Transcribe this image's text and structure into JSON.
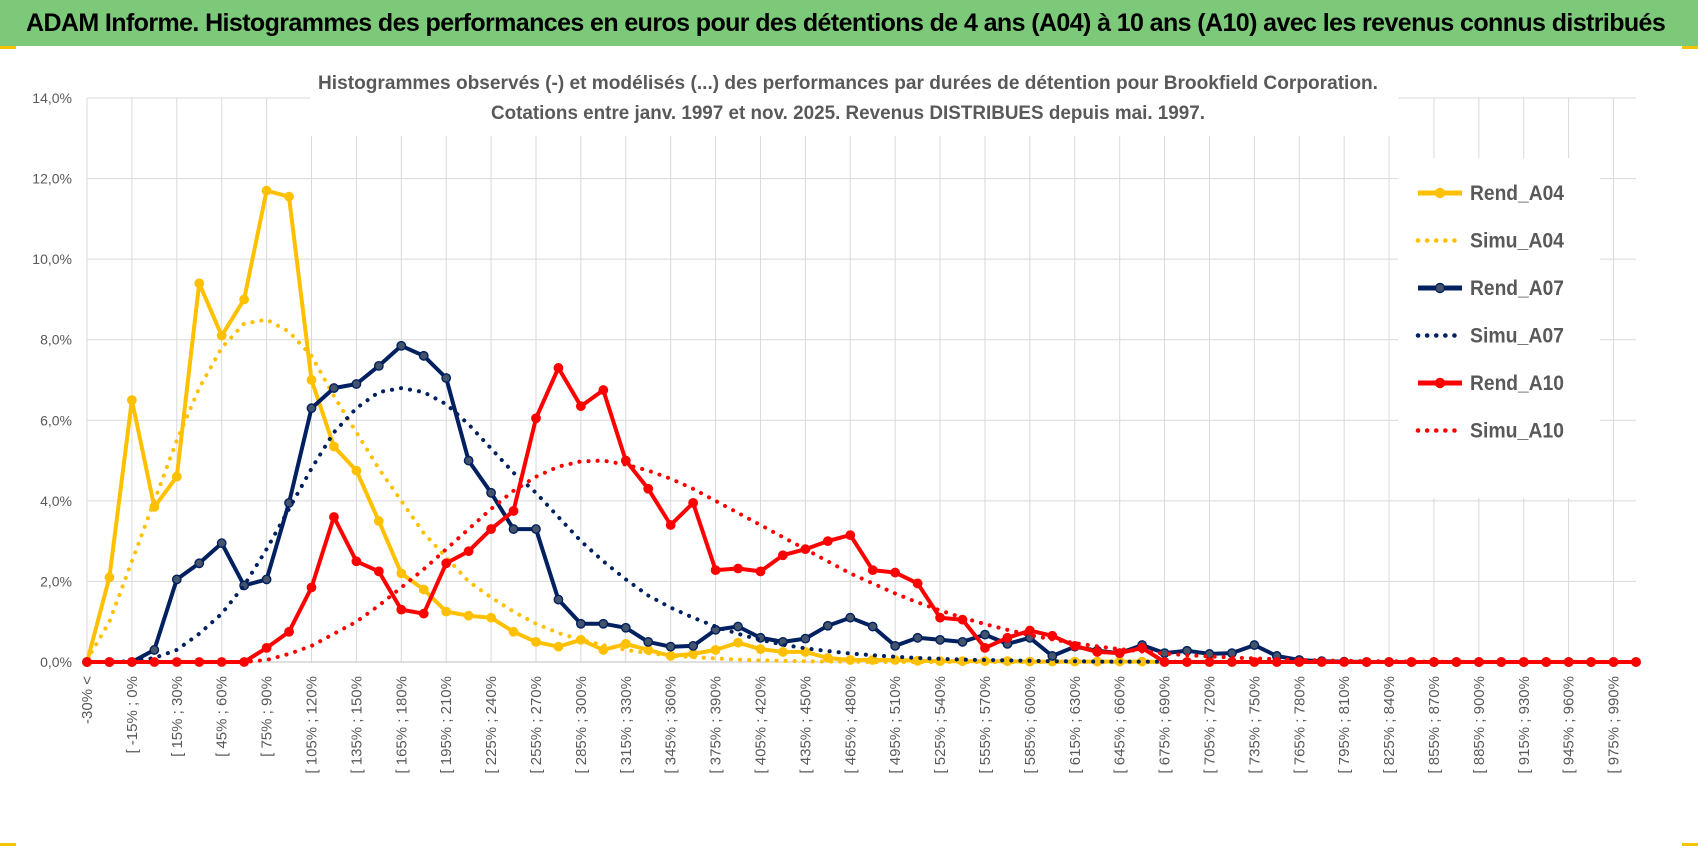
{
  "page_title": "ADAM Informe. Histogrammes des performances en euros pour des détentions de 4 ans (A04) à 10 ans (A10) avec les revenus connus distribués",
  "colors": {
    "header_bg": "#7dc97a",
    "a04": "#ffc000",
    "a07": "#002060",
    "a10": "#ff0000",
    "grid": "#d9d9d9",
    "corner": "#f5c400"
  },
  "chart_data": {
    "type": "line",
    "title_line1": "Histogrammes observés (-)  et modélisés (...) des performances par durées de détention pour Brookfield Corporation.",
    "title_line2": "Cotations entre janv. 1997 et nov. 2025. Revenus DISTRIBUES depuis mai. 1997.",
    "xlabel": "",
    "ylabel": "",
    "ylim": [
      0,
      14
    ],
    "yticks": [
      "0,0%",
      "2,0%",
      "4,0%",
      "6,0%",
      "8,0%",
      "10,0%",
      "12,0%",
      "14,0%"
    ],
    "x_labels_shown": [
      "-30% <",
      "[ -15% ; 0%",
      "[ 15% ; 30%",
      "[ 45% ; 60%",
      "[ 75% ; 90%",
      "[ 105% ; 120%",
      "[ 135% ; 150%",
      "[ 165% ; 180%",
      "[ 195% ; 210%",
      "[ 225% ; 240%",
      "[ 255% ; 270%",
      "[ 285% ; 300%",
      "[ 315% ; 330%",
      "[ 345% ; 360%",
      "[ 375% ; 390%",
      "[ 405% ; 420%",
      "[ 435% ; 450%",
      "[ 465% ; 480%",
      "[ 495% ; 510%",
      "[ 525% ; 540%",
      "[ 555% ; 570%",
      "[ 585% ; 600%",
      "[ 615% ; 630%",
      "[ 645% ; 660%",
      "[ 675% ; 690%",
      "[ 705% ; 720%",
      "[ 735% ; 750%",
      "[ 765% ; 780%",
      "[ 795% ; 810%",
      "[ 825% ; 840%",
      "[ 855% ; 870%",
      "[ 885% ; 900%",
      "[ 915% ; 930%",
      "[ 945% ; 960%",
      "[ 975% ; 990%"
    ],
    "n_points": 70,
    "legend_position": "right",
    "series": [
      {
        "name": "Rend_A04",
        "style": "solid",
        "color": "#ffc000",
        "values": [
          0,
          2.1,
          6.5,
          3.85,
          4.6,
          9.4,
          8.1,
          9.0,
          11.7,
          11.55,
          7.0,
          5.35,
          4.75,
          3.5,
          2.2,
          1.8,
          1.25,
          1.15,
          1.1,
          0.75,
          0.5,
          0.38,
          0.55,
          0.3,
          0.45,
          0.3,
          0.15,
          0.2,
          0.3,
          0.48,
          0.32,
          0.25,
          0.25,
          0.1,
          0.05,
          0.05,
          0.05,
          0.03,
          0.02,
          0.02,
          0.02,
          0.02,
          0.01,
          0.01,
          0.01,
          0.01,
          0.01,
          0.01,
          0.0,
          0,
          0,
          0,
          0,
          0,
          0,
          0,
          0,
          0,
          0,
          0,
          0,
          0,
          0,
          0,
          0,
          0,
          0,
          0,
          0,
          0
        ]
      },
      {
        "name": "Simu_A04",
        "style": "dotted",
        "color": "#ffc000",
        "values": [
          0.05,
          1.0,
          2.5,
          4.0,
          5.5,
          6.8,
          7.8,
          8.4,
          8.5,
          8.2,
          7.6,
          6.6,
          5.7,
          4.8,
          4.0,
          3.2,
          2.6,
          2.0,
          1.6,
          1.25,
          0.95,
          0.72,
          0.55,
          0.42,
          0.3,
          0.22,
          0.16,
          0.12,
          0.09,
          0.06,
          0.04,
          0.03,
          0.02,
          0.01,
          0.01,
          0,
          0,
          0,
          0,
          0,
          0,
          0,
          0,
          0,
          0,
          0,
          0,
          0,
          0,
          0,
          0,
          0,
          0,
          0,
          0,
          0,
          0,
          0,
          0,
          0,
          0,
          0,
          0,
          0,
          0,
          0,
          0,
          0,
          0,
          0
        ]
      },
      {
        "name": "Rend_A07",
        "style": "solid",
        "color": "#002060",
        "values": [
          0,
          0,
          0,
          0.3,
          2.05,
          2.45,
          2.95,
          1.9,
          2.05,
          3.95,
          6.3,
          6.8,
          6.9,
          7.35,
          7.85,
          7.6,
          7.05,
          5.0,
          4.2,
          3.3,
          3.3,
          1.55,
          0.95,
          0.95,
          0.85,
          0.5,
          0.38,
          0.4,
          0.8,
          0.88,
          0.6,
          0.5,
          0.58,
          0.9,
          1.1,
          0.88,
          0.4,
          0.6,
          0.55,
          0.5,
          0.68,
          0.45,
          0.6,
          0.15,
          0.38,
          0.28,
          0.22,
          0.42,
          0.22,
          0.28,
          0.2,
          0.22,
          0.42,
          0.15,
          0.05,
          0.02,
          0.01,
          0,
          0,
          0,
          0,
          0,
          0,
          0,
          0,
          0,
          0,
          0,
          0,
          0
        ]
      },
      {
        "name": "Simu_A07",
        "style": "dotted",
        "color": "#002060",
        "values": [
          0,
          0,
          0.02,
          0.1,
          0.3,
          0.7,
          1.2,
          1.9,
          2.8,
          3.8,
          4.8,
          5.7,
          6.3,
          6.7,
          6.8,
          6.7,
          6.4,
          5.9,
          5.3,
          4.7,
          4.2,
          3.6,
          3.0,
          2.5,
          2.05,
          1.65,
          1.35,
          1.1,
          0.88,
          0.7,
          0.55,
          0.43,
          0.34,
          0.27,
          0.21,
          0.17,
          0.13,
          0.1,
          0.08,
          0.06,
          0.05,
          0.04,
          0.03,
          0.02,
          0.02,
          0.01,
          0.01,
          0.01,
          0.01,
          0,
          0,
          0,
          0,
          0,
          0,
          0,
          0,
          0,
          0,
          0,
          0,
          0,
          0,
          0,
          0,
          0,
          0,
          0,
          0,
          0
        ]
      },
      {
        "name": "Rend_A10",
        "style": "solid",
        "color": "#ff0000",
        "values": [
          0,
          0,
          0,
          0,
          0,
          0,
          0,
          0,
          0.35,
          0.75,
          1.85,
          3.6,
          2.5,
          2.25,
          1.3,
          1.2,
          2.45,
          2.75,
          3.3,
          3.75,
          6.05,
          7.3,
          6.35,
          6.75,
          5.0,
          4.3,
          3.4,
          3.95,
          2.28,
          2.32,
          2.25,
          2.65,
          2.8,
          3.0,
          3.15,
          2.28,
          2.22,
          1.95,
          1.1,
          1.05,
          0.35,
          0.6,
          0.78,
          0.65,
          0.4,
          0.25,
          0.22,
          0.35,
          0,
          0,
          0,
          0,
          0,
          0,
          0,
          0,
          0,
          0,
          0,
          0,
          0,
          0,
          0,
          0,
          0,
          0,
          0,
          0,
          0,
          0
        ]
      },
      {
        "name": "Simu_A10",
        "style": "dotted",
        "color": "#ff0000",
        "values": [
          0,
          0,
          0,
          0,
          0,
          0,
          0,
          0,
          0.05,
          0.2,
          0.4,
          0.7,
          1.0,
          1.4,
          1.85,
          2.3,
          2.8,
          3.3,
          3.8,
          4.25,
          4.6,
          4.85,
          4.98,
          5.0,
          4.9,
          4.75,
          4.55,
          4.3,
          4.0,
          3.7,
          3.4,
          3.1,
          2.8,
          2.5,
          2.2,
          1.95,
          1.7,
          1.48,
          1.28,
          1.1,
          0.94,
          0.8,
          0.67,
          0.56,
          0.47,
          0.39,
          0.32,
          0.26,
          0.21,
          0.17,
          0.14,
          0.11,
          0.09,
          0.07,
          0.05,
          0.04,
          0.03,
          0.02,
          0.02,
          0.01,
          0.01,
          0,
          0,
          0,
          0,
          0,
          0,
          0,
          0,
          0
        ]
      }
    ]
  }
}
